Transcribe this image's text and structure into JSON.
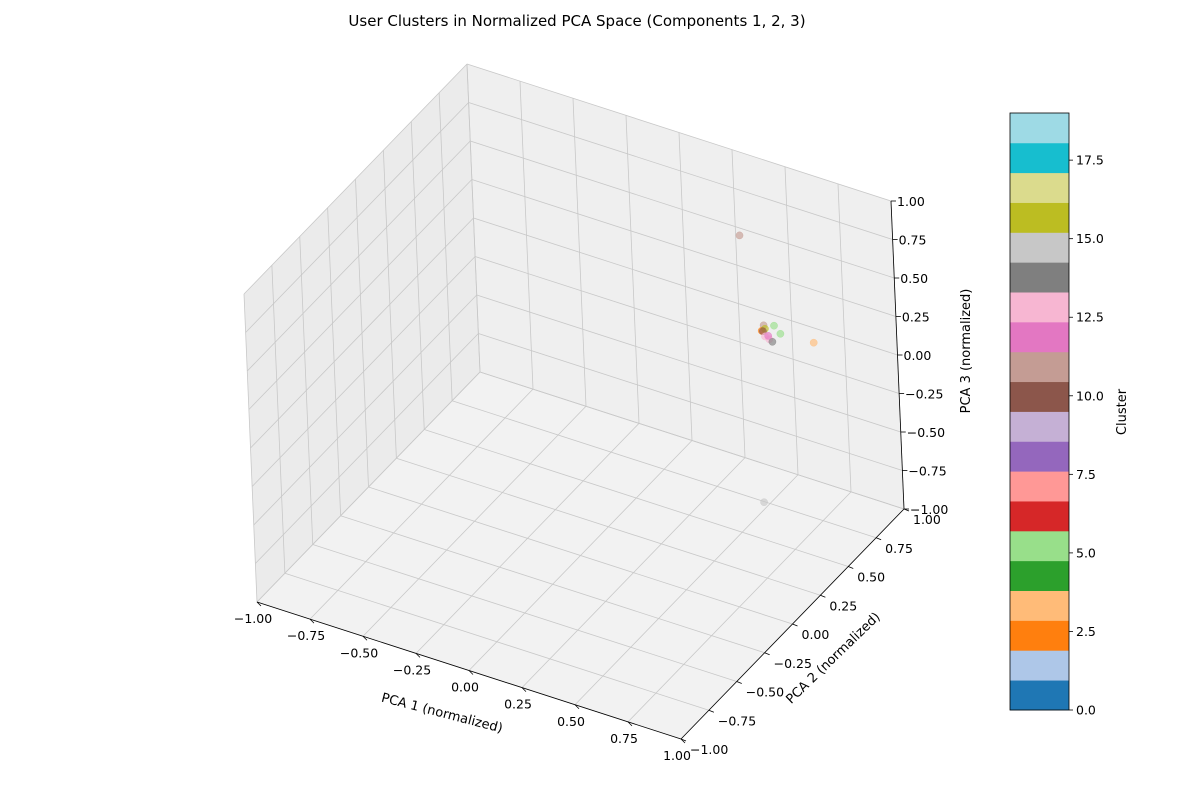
{
  "chart_data": {
    "type": "scatter",
    "projection": "3d",
    "title": "User Clusters in Normalized PCA Space (Components 1, 2, 3)",
    "xlabel": "PCA 1 (normalized)",
    "ylabel": "PCA 2 (normalized)",
    "zlabel": "PCA 3 (normalized)",
    "xlim": [
      -1.0,
      1.0
    ],
    "ylim": [
      -1.0,
      1.0
    ],
    "zlim": [
      -1.0,
      1.0
    ],
    "xticks": [
      "−1.00",
      "−0.75",
      "−0.50",
      "−0.25",
      "0.00",
      "0.25",
      "0.50",
      "0.75",
      "1.00"
    ],
    "yticks": [
      "−1.00",
      "−0.75",
      "−0.50",
      "−0.25",
      "0.00",
      "0.25",
      "0.50",
      "0.75",
      "1.00"
    ],
    "zticks": [
      "−1.00",
      "−0.75",
      "−0.50",
      "−0.25",
      "0.00",
      "0.25",
      "0.50",
      "0.75",
      "1.00"
    ],
    "grid": true,
    "colormap": "tab20",
    "points": [
      {
        "x": 0.38,
        "y": 0.8,
        "z": 0.65,
        "cluster": 11
      },
      {
        "x": 0.88,
        "y": 0.5,
        "z": 0.4,
        "cluster": 3
      },
      {
        "x": 1.0,
        "y": -0.2,
        "z": -0.06,
        "cluster": 15
      },
      {
        "x": 0.5,
        "y": 0.9,
        "z": -0.01,
        "cluster": 5
      },
      {
        "x": 0.46,
        "y": 0.92,
        "z": 0.01,
        "cluster": 5
      },
      {
        "x": 0.41,
        "y": 0.92,
        "z": -0.01,
        "cluster": 11
      },
      {
        "x": 0.4,
        "y": 0.92,
        "z": -0.05,
        "cluster": 2
      },
      {
        "x": 0.41,
        "y": 0.93,
        "z": -0.04,
        "cluster": 16
      },
      {
        "x": 0.4,
        "y": 0.93,
        "z": -0.06,
        "cluster": 10
      },
      {
        "x": 0.42,
        "y": 0.91,
        "z": -0.07,
        "cluster": 13
      },
      {
        "x": 0.44,
        "y": 0.91,
        "z": -0.08,
        "cluster": 13
      },
      {
        "x": 0.46,
        "y": 0.9,
        "z": -0.08,
        "cluster": 14
      },
      {
        "x": 0.43,
        "y": 0.92,
        "z": -0.07,
        "cluster": 12
      }
    ],
    "colorbar": {
      "label": "Cluster",
      "min": 0,
      "max": 19,
      "ticks": [
        "0.0",
        "2.5",
        "5.0",
        "7.5",
        "10.0",
        "12.5",
        "15.0",
        "17.5"
      ],
      "colors": [
        "#1f77b4",
        "#aec7e8",
        "#ff7f0e",
        "#ffbb78",
        "#2ca02c",
        "#98df8a",
        "#d62728",
        "#ff9896",
        "#9467bd",
        "#c5b0d5",
        "#8c564b",
        "#c49c94",
        "#e377c2",
        "#f7b6d2",
        "#7f7f7f",
        "#c7c7c7",
        "#bcbd22",
        "#dbdb8d",
        "#17becf",
        "#9edae5"
      ]
    }
  }
}
